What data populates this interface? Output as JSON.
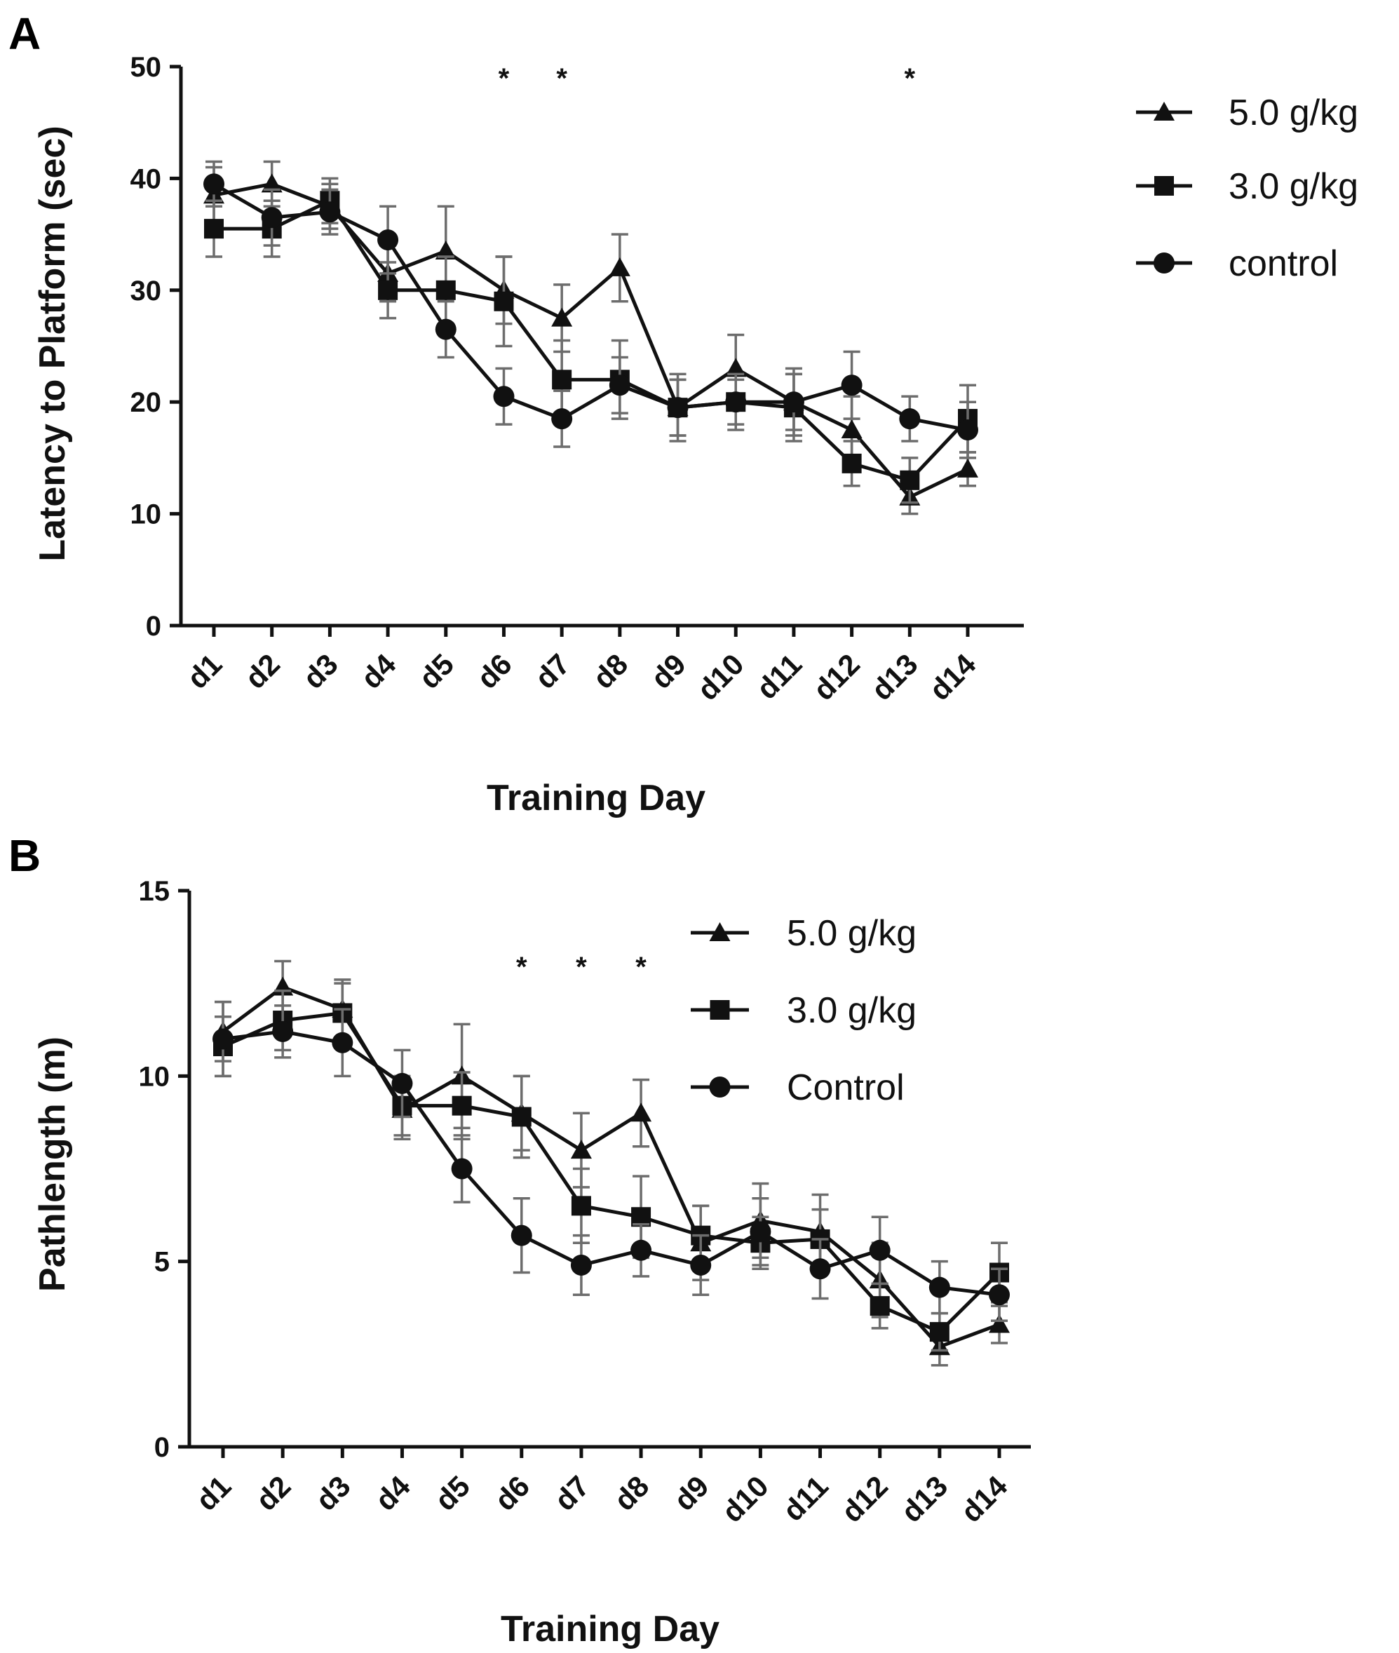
{
  "chart_data": [
    {
      "panel": "A",
      "type": "line",
      "title": "",
      "xlabel": "Training Day",
      "ylabel": "Latency to Platform (sec)",
      "ylim": [
        0,
        50
      ],
      "yticks": [
        0,
        10,
        20,
        30,
        40,
        50
      ],
      "categories": [
        "d1",
        "d2",
        "d3",
        "d4",
        "d5",
        "d6",
        "d7",
        "d8",
        "d9",
        "d10",
        "d11",
        "d12",
        "d13",
        "d14"
      ],
      "legend_position": "top-right outside",
      "significance": {
        "marker": "*",
        "days": [
          "d6",
          "d7",
          "d13"
        ]
      },
      "series": [
        {
          "name": "5.0 g/kg",
          "marker": "triangle",
          "values": [
            38.5,
            39.5,
            37.5,
            31.5,
            33.5,
            30.0,
            27.5,
            32.0,
            19.5,
            23.0,
            20.0,
            17.5,
            11.5,
            14.0
          ],
          "errors": [
            2.5,
            2.0,
            2.0,
            2.5,
            4.0,
            3.0,
            3.0,
            3.0,
            2.5,
            3.0,
            3.0,
            3.0,
            1.5,
            1.5
          ]
        },
        {
          "name": "3.0 g/kg",
          "marker": "square",
          "values": [
            35.5,
            35.5,
            38.0,
            30.0,
            30.0,
            29.0,
            22.0,
            22.0,
            19.5,
            20.0,
            19.5,
            14.5,
            13.0,
            18.5
          ],
          "errors": [
            2.5,
            2.5,
            2.0,
            2.5,
            3.0,
            4.0,
            3.5,
            3.5,
            3.0,
            2.5,
            3.0,
            2.0,
            2.0,
            3.0
          ]
        },
        {
          "name": "control",
          "marker": "circle",
          "values": [
            39.5,
            36.5,
            37.0,
            34.5,
            26.5,
            20.5,
            18.5,
            21.5,
            19.5,
            20.0,
            20.0,
            21.5,
            18.5,
            17.5
          ],
          "errors": [
            2.0,
            2.5,
            2.0,
            3.0,
            2.5,
            2.5,
            2.5,
            2.5,
            2.5,
            2.0,
            2.5,
            3.0,
            2.0,
            2.5
          ]
        }
      ]
    },
    {
      "panel": "B",
      "type": "line",
      "title": "",
      "xlabel": "Training Day",
      "ylabel": "Pathlength (m)",
      "ylim": [
        0,
        15
      ],
      "yticks": [
        0,
        5,
        10,
        15
      ],
      "categories": [
        "d1",
        "d2",
        "d3",
        "d4",
        "d5",
        "d6",
        "d7",
        "d8",
        "d9",
        "d10",
        "d11",
        "d12",
        "d13",
        "d14"
      ],
      "legend_position": "top-center",
      "significance": {
        "marker": "*",
        "days": [
          "d6",
          "d7",
          "d8"
        ]
      },
      "series": [
        {
          "name": "5.0 g/kg",
          "marker": "triangle",
          "values": [
            11.2,
            12.4,
            11.8,
            9.1,
            10.0,
            9.0,
            8.0,
            9.0,
            5.5,
            6.1,
            5.8,
            4.5,
            2.7,
            3.3
          ],
          "errors": [
            0.8,
            0.7,
            0.8,
            0.8,
            1.4,
            1.0,
            1.0,
            0.9,
            1.0,
            1.0,
            1.0,
            1.0,
            0.5,
            0.5
          ]
        },
        {
          "name": "3.0 g/kg",
          "marker": "square",
          "values": [
            10.8,
            11.5,
            11.7,
            9.2,
            9.2,
            8.9,
            6.5,
            6.2,
            5.7,
            5.5,
            5.6,
            3.8,
            3.1,
            4.7
          ],
          "errors": [
            0.8,
            0.8,
            0.8,
            0.8,
            0.9,
            1.1,
            1.0,
            1.1,
            0.8,
            0.7,
            0.8,
            0.6,
            0.5,
            0.8
          ]
        },
        {
          "name": "Control",
          "marker": "circle",
          "values": [
            11.0,
            11.2,
            10.9,
            9.8,
            7.5,
            5.7,
            4.9,
            5.3,
            4.9,
            5.8,
            4.8,
            5.3,
            4.3,
            4.1
          ],
          "errors": [
            1.0,
            0.7,
            0.9,
            0.9,
            0.9,
            1.0,
            0.8,
            0.7,
            0.8,
            0.9,
            0.8,
            0.9,
            0.7,
            0.7
          ]
        }
      ]
    }
  ]
}
